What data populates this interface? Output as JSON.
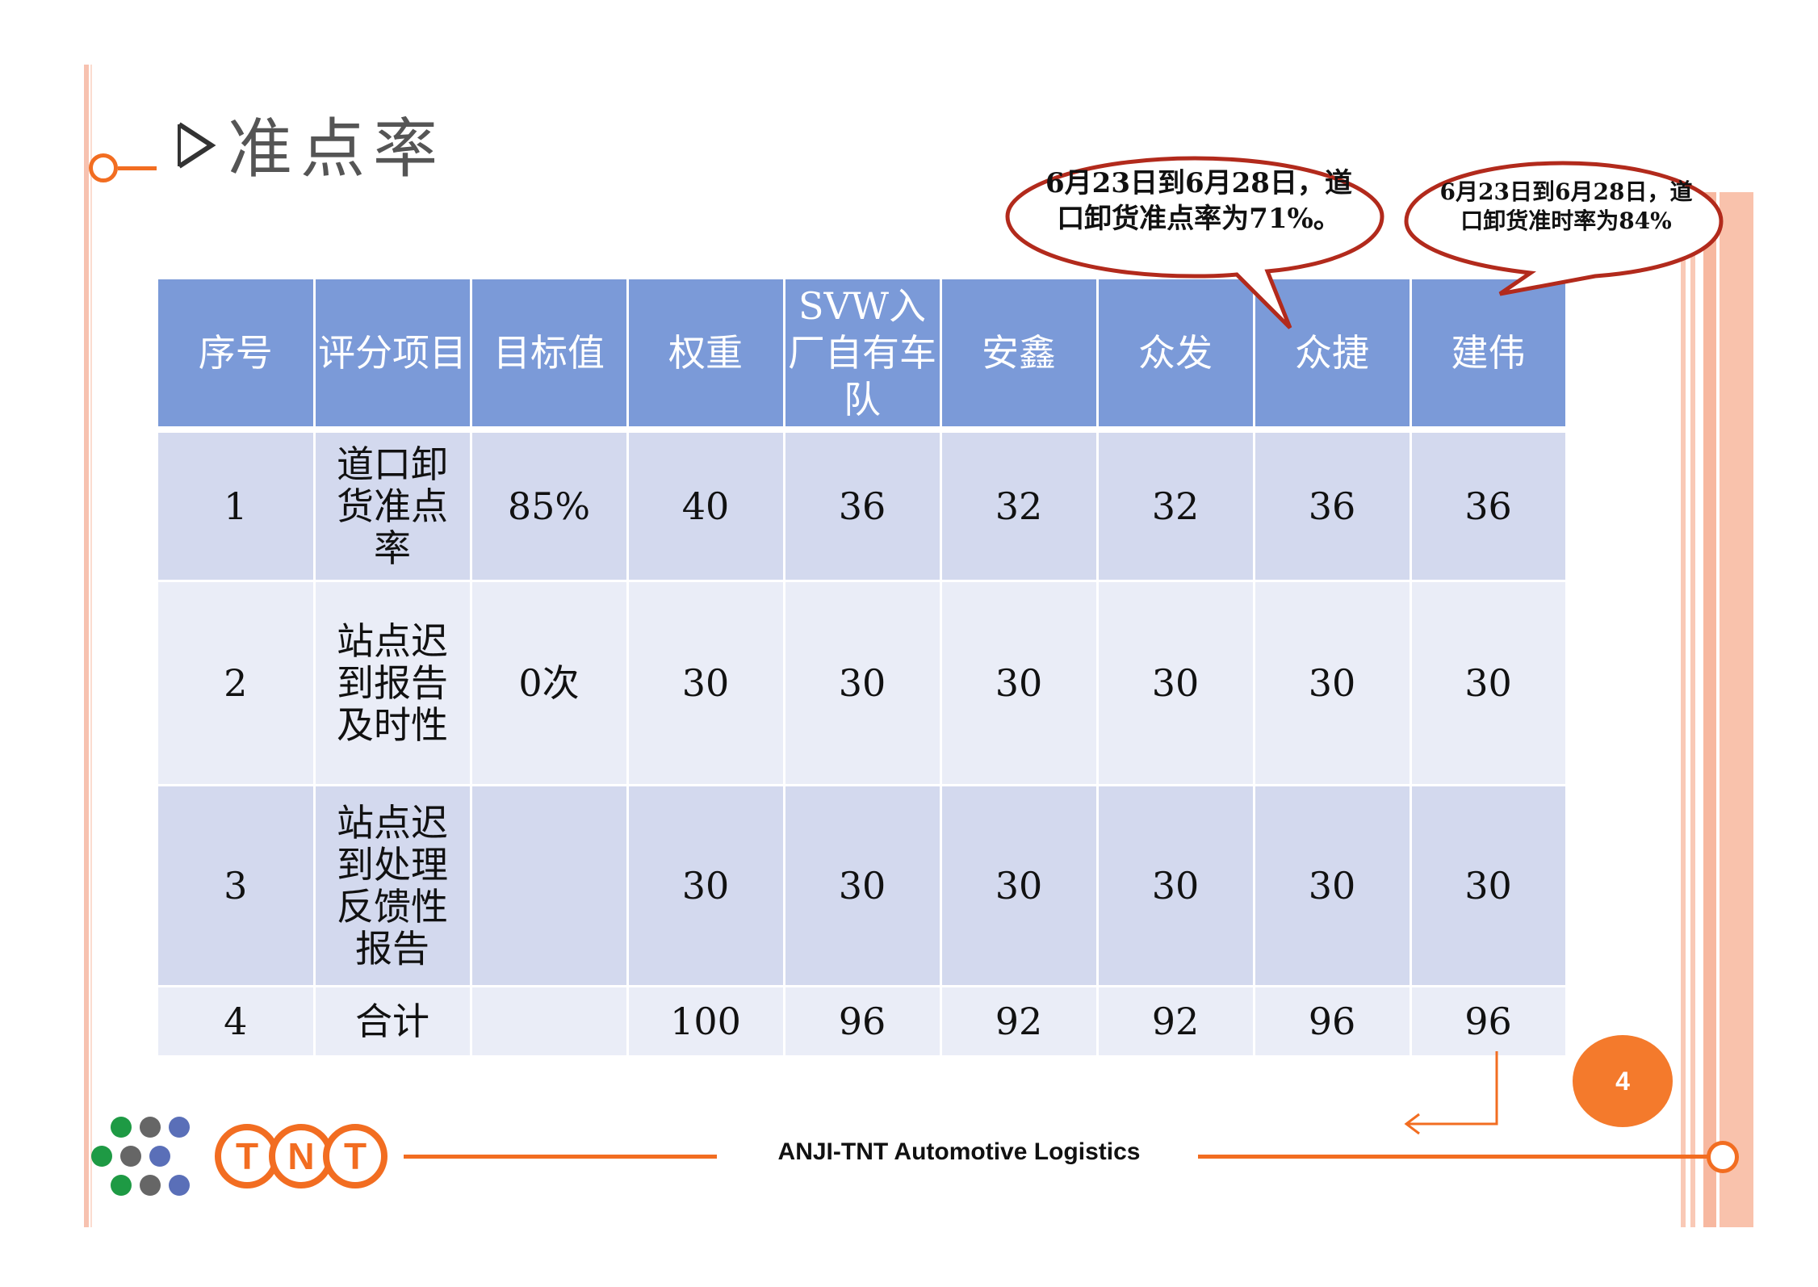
{
  "title": "准点率",
  "table": {
    "headers": [
      "序号",
      "评分项目",
      "目标值",
      "权重",
      "SVW入厂自有车队",
      "安鑫",
      "众发",
      "众捷",
      "建伟"
    ],
    "rows": [
      [
        "1",
        "道口卸货准点率",
        "85%",
        "40",
        "36",
        "32",
        "32",
        "36",
        "36"
      ],
      [
        "2",
        "站点迟到报告及时性",
        "0次",
        "30",
        "30",
        "30",
        "30",
        "30",
        "30"
      ],
      [
        "3",
        "站点迟到处理反馈性报告",
        "",
        "30",
        "30",
        "30",
        "30",
        "30",
        "30"
      ],
      [
        "4",
        "合计",
        "",
        "100",
        "96",
        "92",
        "92",
        "96",
        "96"
      ]
    ]
  },
  "callouts": [
    "6月23日到6月28日，道口卸货准点率为71%。",
    "6月23日到6月28日，道口卸货准时率为84%"
  ],
  "page_number": "4",
  "footer": {
    "company": "ANJI-TNT Automotive Logistics"
  },
  "colors": {
    "header": "#7b9ad8",
    "accent": "#f26d21",
    "row_dark": "#d3d9ee",
    "row_light": "#eaedf7"
  }
}
